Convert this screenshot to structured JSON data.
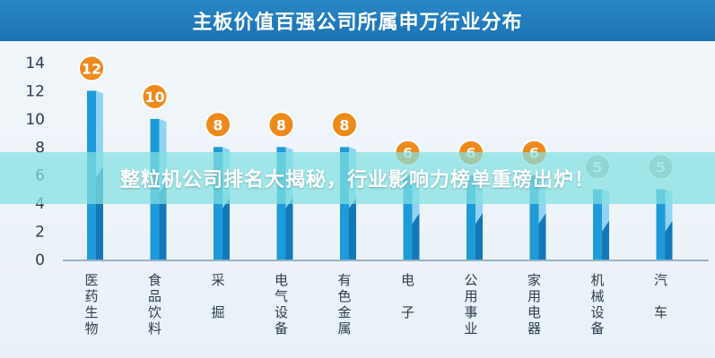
{
  "chart_data": {
    "type": "bar",
    "title": "主板价值百强公司所属申万行业分布",
    "categories": [
      "医药生物",
      "食品饮料",
      "采掘",
      "电气设备",
      "有色金属",
      "电子",
      "公用事业",
      "家用电器",
      "机械设备",
      "汽车"
    ],
    "category_chars": [
      [
        "医",
        "药",
        "生",
        "物"
      ],
      [
        "食",
        "品",
        "饮",
        "料"
      ],
      [
        "采",
        "",
        "掘",
        ""
      ],
      [
        "电",
        "气",
        "设",
        "备"
      ],
      [
        "有",
        "色",
        "金",
        "属"
      ],
      [
        "电",
        "",
        "子",
        ""
      ],
      [
        "公",
        "用",
        "事",
        "业"
      ],
      [
        "家",
        "用",
        "电",
        "器"
      ],
      [
        "机",
        "械",
        "设",
        "备"
      ],
      [
        "汽",
        "",
        "车",
        ""
      ]
    ],
    "values": [
      12,
      10,
      8,
      8,
      8,
      6,
      6,
      6,
      5,
      5
    ],
    "ylim": [
      0,
      14
    ],
    "yticks": [
      0,
      2,
      4,
      6,
      8,
      10,
      12,
      14
    ],
    "grid": false,
    "bubble_colors": {
      "orange": "#ee8a1c",
      "grey": "#b7b7b7"
    },
    "bar_colors": {
      "front": "#1f9ad8",
      "side": "#8fd4f4",
      "lower": "#1478b8"
    }
  },
  "overlay_banner": "整粒机公司排名大揭秘，行业影响力榜单重磅出炉！"
}
